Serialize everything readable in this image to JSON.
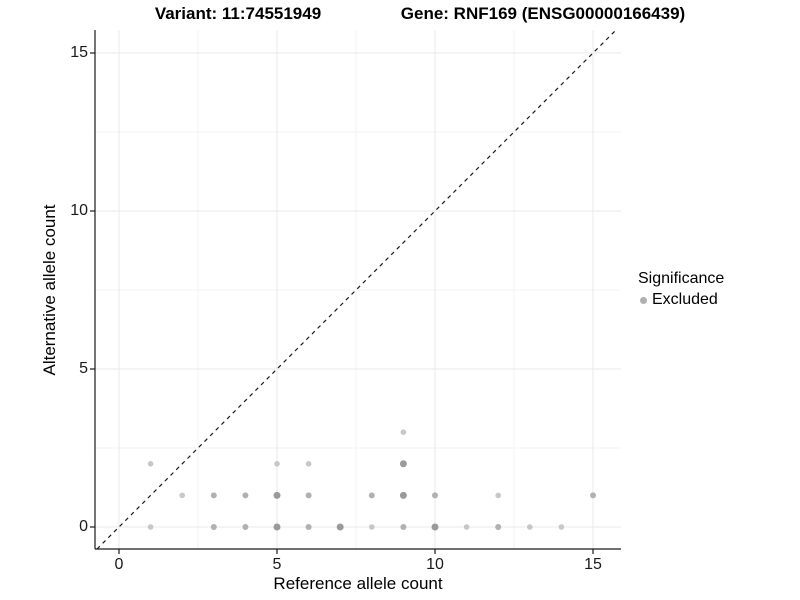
{
  "chart_data": {
    "type": "scatter",
    "title_left": "Variant: 11:74551949",
    "title_right": "Gene: RNF169 (ENSG00000166439)",
    "xlabel": "Reference allele count",
    "ylabel": "Alternative allele count",
    "x_ticks": [
      0,
      5,
      10,
      15
    ],
    "y_ticks": [
      0,
      5,
      10,
      15
    ],
    "x_minor_ticks": [
      2.5,
      7.5,
      12.5
    ],
    "y_minor_ticks": [
      2.5,
      7.5,
      12.5
    ],
    "xlim": [
      -0.7,
      15.9
    ],
    "ylim": [
      -0.7,
      15.75
    ],
    "grid": "major+minor",
    "legend_position": "right",
    "legend": {
      "title": "Significance",
      "items": [
        {
          "label": "Excluded",
          "color": "#b0b0b0"
        }
      ]
    },
    "identity_line": {
      "style": "dashed",
      "color": "#1a1a1a"
    },
    "point_shades": {
      "light": "#c7c7c7",
      "medium": "#b1b1b1",
      "dark": "#9a9a9a"
    },
    "points": [
      {
        "x": 1,
        "y": 0,
        "shade": "light"
      },
      {
        "x": 3,
        "y": 0,
        "shade": "medium"
      },
      {
        "x": 4,
        "y": 0,
        "shade": "medium"
      },
      {
        "x": 5,
        "y": 0,
        "shade": "dark"
      },
      {
        "x": 6,
        "y": 0,
        "shade": "medium"
      },
      {
        "x": 7,
        "y": 0,
        "shade": "dark"
      },
      {
        "x": 8,
        "y": 0,
        "shade": "light"
      },
      {
        "x": 9,
        "y": 0,
        "shade": "medium"
      },
      {
        "x": 10,
        "y": 0,
        "shade": "dark"
      },
      {
        "x": 11,
        "y": 0,
        "shade": "light"
      },
      {
        "x": 12,
        "y": 0,
        "shade": "medium"
      },
      {
        "x": 13,
        "y": 0,
        "shade": "light"
      },
      {
        "x": 14,
        "y": 0,
        "shade": "light"
      },
      {
        "x": 2,
        "y": 1,
        "shade": "light"
      },
      {
        "x": 3,
        "y": 1,
        "shade": "medium"
      },
      {
        "x": 4,
        "y": 1,
        "shade": "medium"
      },
      {
        "x": 5,
        "y": 1,
        "shade": "dark"
      },
      {
        "x": 6,
        "y": 1,
        "shade": "medium"
      },
      {
        "x": 8,
        "y": 1,
        "shade": "medium"
      },
      {
        "x": 9,
        "y": 1,
        "shade": "dark"
      },
      {
        "x": 10,
        "y": 1,
        "shade": "medium"
      },
      {
        "x": 12,
        "y": 1,
        "shade": "light"
      },
      {
        "x": 15,
        "y": 1,
        "shade": "medium"
      },
      {
        "x": 1,
        "y": 2,
        "shade": "light"
      },
      {
        "x": 5,
        "y": 2,
        "shade": "light"
      },
      {
        "x": 6,
        "y": 2,
        "shade": "light"
      },
      {
        "x": 9,
        "y": 2,
        "shade": "dark"
      },
      {
        "x": 9,
        "y": 3,
        "shade": "light"
      }
    ]
  },
  "colors": {
    "background": "#ffffff",
    "grid_major": "#e8e8e8",
    "grid_minor": "#f3f3f3",
    "axis": "#1a1a1a"
  }
}
